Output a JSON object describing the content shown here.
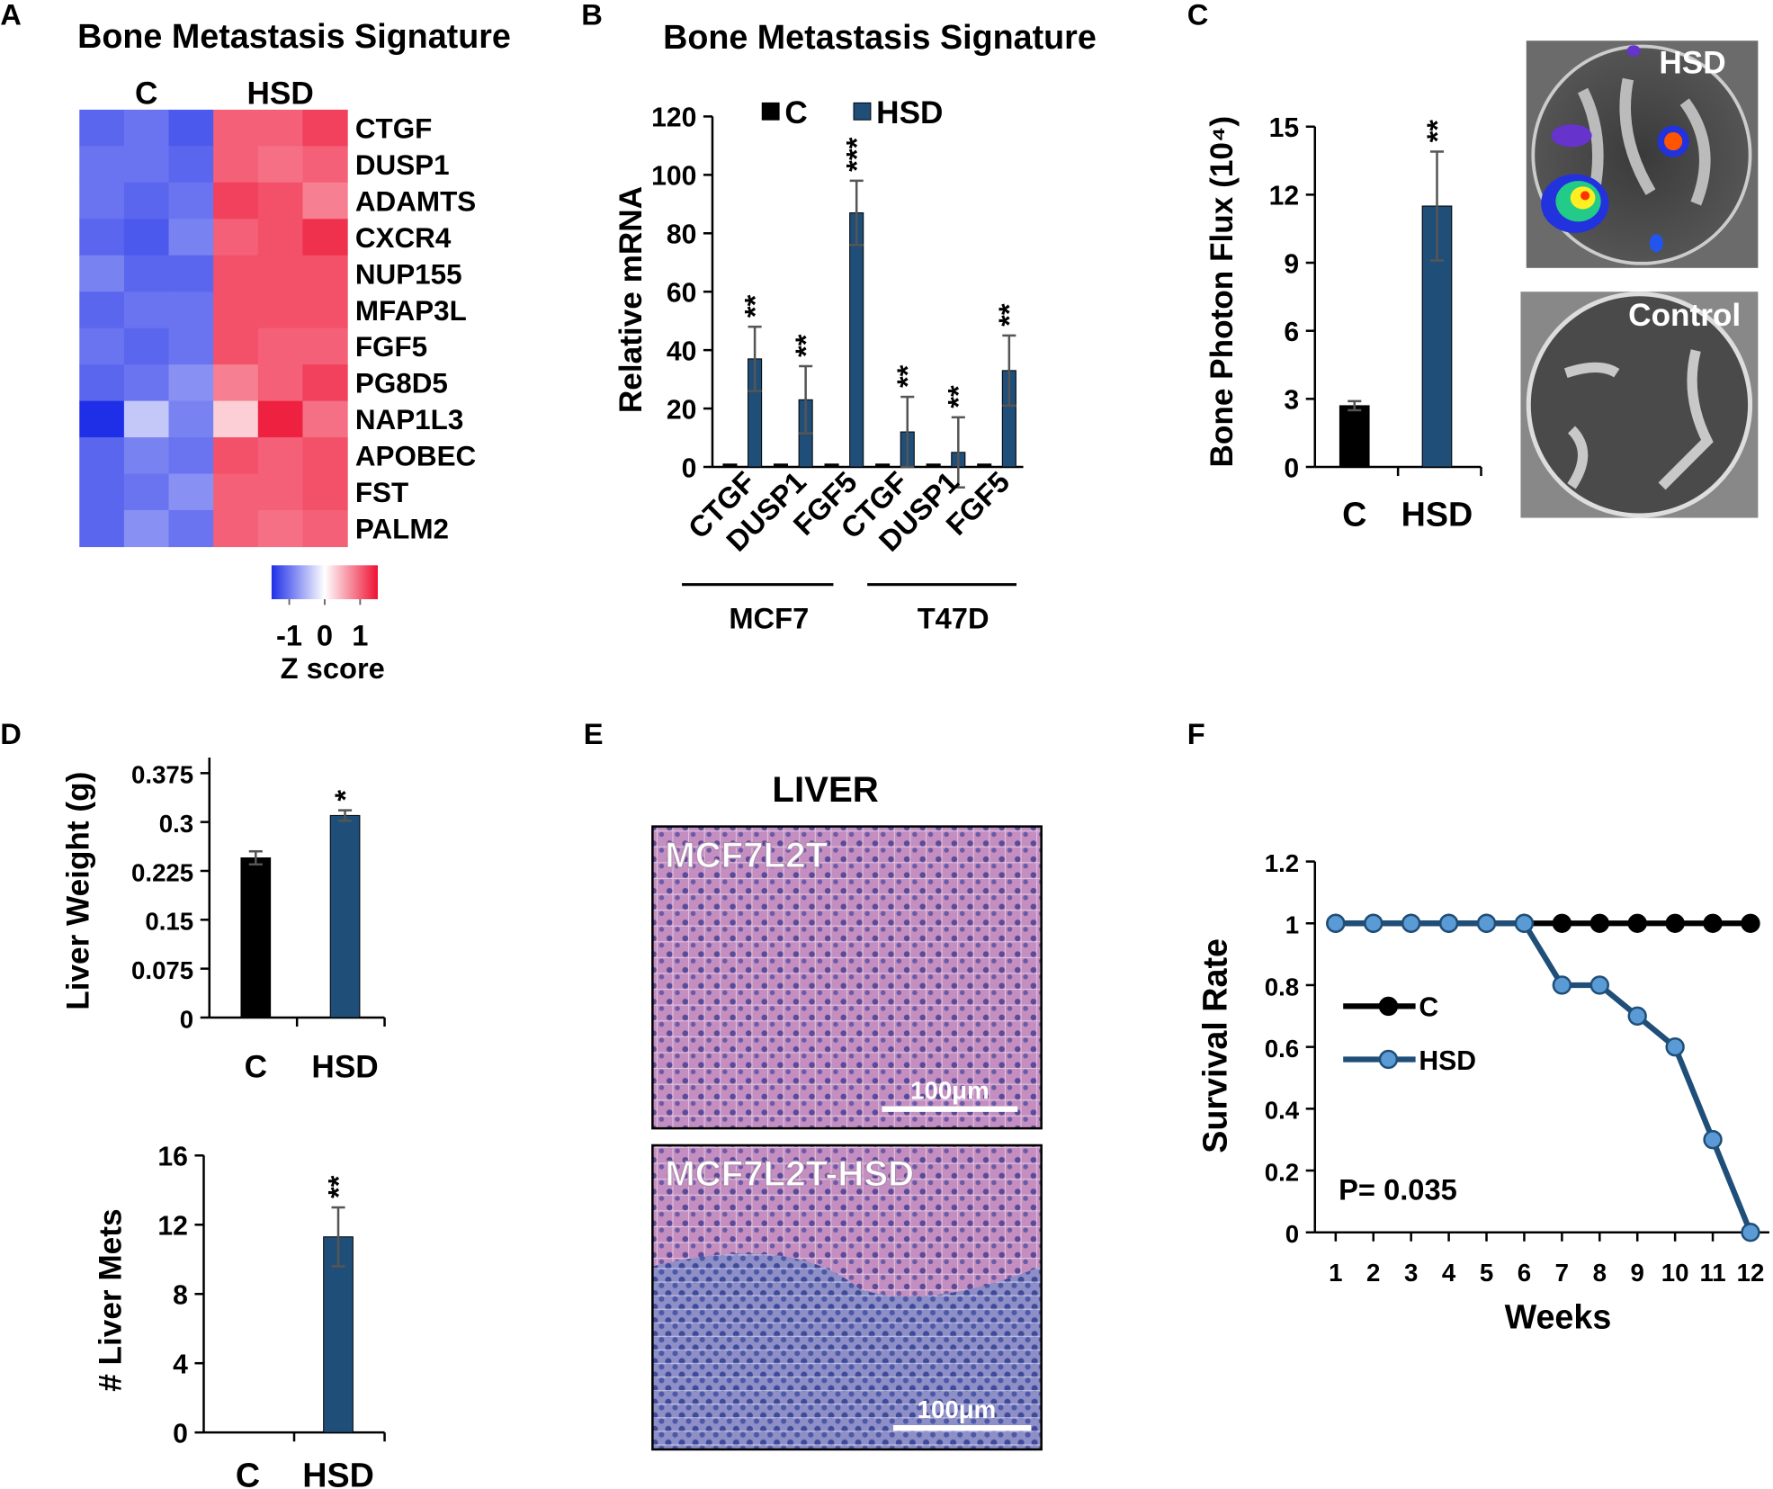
{
  "chart_data": [
    {
      "panel": "A",
      "type": "heatmap",
      "title": "Bone Metastasis Signature",
      "column_groups": [
        "C",
        "HSD"
      ],
      "rows": [
        "CTGF",
        "DUSP1",
        "ADAMTS",
        "CXCR4",
        "NUP155",
        "MFAP3L",
        "FGF5",
        "PG8D5",
        "NAP1L3",
        "APOBEC",
        "FST",
        "PALM2"
      ],
      "values": [
        [
          -1.1,
          -1.0,
          -1.2,
          1.0,
          1.0,
          1.2
        ],
        [
          -1.0,
          -1.0,
          -1.1,
          1.0,
          0.9,
          1.0
        ],
        [
          -1.0,
          -1.1,
          -1.0,
          1.2,
          1.1,
          0.8
        ],
        [
          -1.1,
          -1.2,
          -0.9,
          1.0,
          1.1,
          1.3
        ],
        [
          -0.9,
          -1.1,
          -1.1,
          1.1,
          1.1,
          1.1
        ],
        [
          -1.1,
          -1.0,
          -1.0,
          1.1,
          1.1,
          1.1
        ],
        [
          -1.0,
          -1.1,
          -1.0,
          1.1,
          1.0,
          1.0
        ],
        [
          -1.1,
          -1.0,
          -0.8,
          0.8,
          1.0,
          1.2
        ],
        [
          -1.5,
          -0.4,
          -0.9,
          0.3,
          1.4,
          0.9
        ],
        [
          -1.1,
          -0.9,
          -1.0,
          1.1,
          1.0,
          1.1
        ],
        [
          -1.1,
          -1.0,
          -0.8,
          1.0,
          1.0,
          1.1
        ],
        [
          -1.1,
          -0.8,
          -1.0,
          1.0,
          0.9,
          1.0
        ]
      ],
      "zlim": [
        -1.5,
        1.5
      ],
      "colors": [
        "#1f2fe8",
        "#ffffff",
        "#ee1133"
      ],
      "colorbar_ticks": [
        -1,
        0,
        1
      ],
      "colorbar_label": "Z score"
    },
    {
      "panel": "B",
      "type": "bar",
      "title": "Bone Metastasis Signature",
      "ylabel": "Relative mRNA",
      "categories": [
        "CTGF",
        "DUSP1",
        "FGF5",
        "CTGF",
        "DUSP1",
        "FGF5"
      ],
      "groups": [
        "MCF7",
        "T47D"
      ],
      "series": [
        {
          "name": "C",
          "color": "#000000",
          "values": [
            1,
            1,
            1,
            1,
            1,
            1
          ]
        },
        {
          "name": "HSD",
          "color": "#1f4e79",
          "values": [
            37,
            23,
            87,
            12,
            5,
            33
          ],
          "errors": [
            11,
            11.5,
            11,
            12,
            12,
            12
          ],
          "annotations": [
            "**",
            "**",
            "***",
            "**",
            "**",
            "**"
          ]
        }
      ],
      "ylim": [
        0,
        120
      ],
      "yticks": [
        0,
        20,
        40,
        60,
        80,
        100,
        120
      ],
      "legend": "top"
    },
    {
      "panel": "C",
      "type": "bar",
      "ylabel": "Bone Photon Flux (10⁴)",
      "categories": [
        "C",
        "HSD"
      ],
      "values": [
        2.7,
        11.5
      ],
      "errors": [
        0.2,
        2.4
      ],
      "colors": [
        "#000000",
        "#1f4e79"
      ],
      "annotations": [
        {
          "category": "HSD",
          "text": "**"
        }
      ],
      "ylim": [
        0,
        15
      ],
      "yticks": [
        0,
        3,
        6,
        9,
        12,
        15
      ],
      "photos": [
        {
          "label": "HSD"
        },
        {
          "label": "Control"
        }
      ]
    },
    {
      "panel": "D",
      "type": "bar",
      "ylabel": "Liver  Weight (g)",
      "categories": [
        "C",
        "HSD"
      ],
      "values": [
        0.245,
        0.31
      ],
      "errors": [
        0.01,
        0.008
      ],
      "colors": [
        "#000000",
        "#1f4e79"
      ],
      "annotations": [
        {
          "category": "HSD",
          "text": "*"
        }
      ],
      "ylim": [
        0,
        0.399
      ],
      "yticks": [
        0,
        0.075,
        0.15,
        0.225,
        0.3,
        0.375
      ]
    },
    {
      "type": "bar",
      "ylabel": "# Liver Mets",
      "categories": [
        "C",
        "HSD"
      ],
      "values": [
        0,
        11.3
      ],
      "errors": [
        0,
        1.7
      ],
      "colors": [
        "#000000",
        "#1f4e79"
      ],
      "annotations": [
        {
          "category": "HSD",
          "text": "**"
        }
      ],
      "ylim": [
        0,
        16
      ],
      "yticks": [
        0,
        4,
        8,
        12,
        16
      ]
    },
    {
      "panel": "F",
      "type": "line",
      "xlabel": "Weeks",
      "ylabel": "Survival Rate",
      "x": [
        1,
        2,
        3,
        4,
        5,
        6,
        7,
        8,
        9,
        10,
        11,
        12
      ],
      "series": [
        {
          "name": "C",
          "color": "#000000",
          "marker_color": "#000000",
          "values": [
            1,
            1,
            1,
            1,
            1,
            1,
            1,
            1,
            1,
            1,
            1,
            1
          ]
        },
        {
          "name": "HSD",
          "color": "#1f4e79",
          "marker_color": "#5b9bd5",
          "values": [
            1,
            1,
            1,
            1,
            1,
            1,
            0.8,
            0.8,
            0.7,
            0.6,
            0.3,
            0
          ]
        }
      ],
      "annotation": "P= 0.035",
      "xlim": [
        0.45,
        12.5
      ],
      "xticks": [
        1,
        2,
        3,
        4,
        5,
        6,
        7,
        8,
        9,
        10,
        11,
        12
      ],
      "ylim": [
        0,
        1.2
      ],
      "yticks": [
        0,
        0.2,
        0.4,
        0.6,
        0.8,
        1,
        1.2
      ],
      "legend": "left"
    }
  ],
  "panel_e": {
    "panel": "E",
    "title": "LIVER",
    "images": [
      {
        "label": "MCF7L2T",
        "scale_bar": "100μm"
      },
      {
        "label": "MCF7L2T-HSD",
        "scale_bar": "100μm"
      }
    ]
  }
}
